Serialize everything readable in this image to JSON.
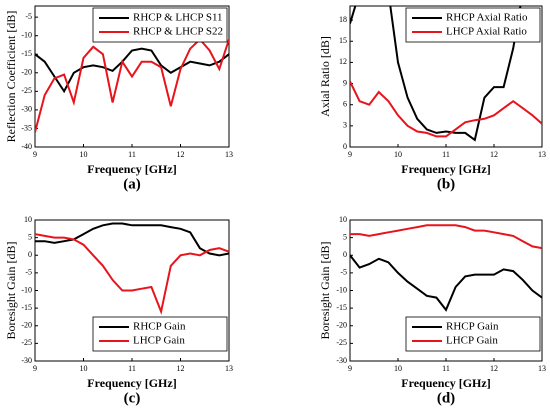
{
  "chart_data": [
    {
      "type": "line",
      "label": "(a)",
      "x_label": "Frequency [GHz]",
      "y_label": "Reflection Coefficient [dB]",
      "x": [
        9,
        9.2,
        9.4,
        9.6,
        9.8,
        10,
        10.2,
        10.4,
        10.6,
        10.8,
        11,
        11.2,
        11.4,
        11.6,
        11.8,
        12,
        12.2,
        12.4,
        12.6,
        12.8,
        13
      ],
      "xlim": [
        9,
        13
      ],
      "xticks": [
        9,
        10,
        11,
        12,
        13
      ],
      "ylim": [
        -40,
        -2
      ],
      "yticks": [
        -40,
        -35,
        -30,
        -25,
        -20,
        -15,
        -10,
        -5
      ],
      "legend": "upper right",
      "series": [
        {
          "name": "RHCP & LHCP S11",
          "color": "#000000",
          "values": [
            -15,
            -17,
            -21,
            -25,
            -20,
            -18.5,
            -18,
            -18.5,
            -19.5,
            -17,
            -14,
            -13.5,
            -14,
            -18,
            -20,
            -18.5,
            -17,
            -17.5,
            -18,
            -17,
            -15
          ]
        },
        {
          "name": "RHCP & LHCP S22",
          "color": "#e8141c",
          "values": [
            -36,
            -26,
            -21.5,
            -20.5,
            -28,
            -16,
            -13,
            -15,
            -28,
            -17,
            -21,
            -17,
            -17,
            -18.5,
            -29,
            -19,
            -13.5,
            -11,
            -14,
            -19,
            -11
          ]
        }
      ]
    },
    {
      "type": "line",
      "label": "(b)",
      "x_label": "Frequency [GHz]",
      "y_label": "Axial Ratio [dB]",
      "x": [
        9,
        9.2,
        9.4,
        9.6,
        9.8,
        10,
        10.2,
        10.4,
        10.6,
        10.8,
        11,
        11.2,
        11.4,
        11.6,
        11.8,
        12,
        12.2,
        12.4,
        12.6,
        12.8,
        13
      ],
      "xlim": [
        9,
        13
      ],
      "xticks": [
        9,
        10,
        11,
        12,
        13
      ],
      "ylim": [
        0,
        20
      ],
      "yticks": [
        0,
        3,
        6,
        9,
        12,
        15,
        18
      ],
      "legend": "upper right",
      "series": [
        {
          "name": "RHCP Axial Ratio",
          "color": "#000000",
          "values": [
            17.5,
            22,
            null,
            null,
            22,
            12,
            7,
            4,
            2.5,
            2,
            2.2,
            2,
            2,
            1,
            7,
            8.5,
            8.5,
            14,
            22,
            null,
            null
          ]
        },
        {
          "name": "LHCP Axial Ratio",
          "color": "#e8141c",
          "values": [
            9.3,
            6.5,
            6,
            7.8,
            6.5,
            4.5,
            3,
            2.2,
            2,
            1.5,
            1.5,
            2.5,
            3.5,
            3.8,
            4,
            4.5,
            5.5,
            6.5,
            5.5,
            4.5,
            3.3
          ]
        }
      ]
    },
    {
      "type": "line",
      "label": "(c)",
      "x_label": "Frequency [GHz]",
      "y_label": "Boresight Gain [dB]",
      "x": [
        9,
        9.2,
        9.4,
        9.6,
        9.8,
        10,
        10.2,
        10.4,
        10.6,
        10.8,
        11,
        11.2,
        11.4,
        11.6,
        11.8,
        12,
        12.2,
        12.4,
        12.6,
        12.8,
        13
      ],
      "xlim": [
        9,
        13
      ],
      "xticks": [
        9,
        10,
        11,
        12,
        13
      ],
      "ylim": [
        -30,
        10
      ],
      "yticks": [
        -30,
        -25,
        -20,
        -15,
        -10,
        -5,
        0,
        5,
        10
      ],
      "legend": "lower right",
      "series": [
        {
          "name": "RHCP Gain",
          "color": "#000000",
          "values": [
            4,
            4,
            3.5,
            4,
            4.5,
            6,
            7.5,
            8.5,
            9,
            9,
            8.5,
            8.5,
            8.5,
            8.5,
            8,
            7.5,
            6.5,
            2,
            0.5,
            0,
            0.5
          ]
        },
        {
          "name": "LHCP Gain",
          "color": "#e8141c",
          "values": [
            6,
            5.5,
            5,
            5,
            4.5,
            3,
            0,
            -3,
            -7,
            -10,
            -10,
            -9.5,
            -9,
            -16,
            -3,
            0,
            0.5,
            0,
            1.5,
            2,
            1
          ]
        }
      ]
    },
    {
      "type": "line",
      "label": "(d)",
      "x_label": "Frequency [GHz]",
      "y_label": "Boresight Gain [dB]",
      "x": [
        9,
        9.2,
        9.4,
        9.6,
        9.8,
        10,
        10.2,
        10.4,
        10.6,
        10.8,
        11,
        11.2,
        11.4,
        11.6,
        11.8,
        12,
        12.2,
        12.4,
        12.6,
        12.8,
        13
      ],
      "xlim": [
        9,
        13
      ],
      "xticks": [
        9,
        10,
        11,
        12,
        13
      ],
      "ylim": [
        -30,
        10
      ],
      "yticks": [
        -30,
        -25,
        -20,
        -15,
        -10,
        -5,
        0,
        5,
        10
      ],
      "legend": "lower right",
      "series": [
        {
          "name": "RHCP Gain",
          "color": "#000000",
          "values": [
            0,
            -3.5,
            -2.5,
            -1,
            -2,
            -5,
            -7.5,
            -9.5,
            -11.5,
            -12,
            -15.5,
            -9,
            -6,
            -5.5,
            -5.5,
            -5.5,
            -4,
            -4.5,
            -7,
            -10,
            -12
          ]
        },
        {
          "name": "LHCP Gain",
          "color": "#e8141c",
          "values": [
            6,
            6,
            5.5,
            6,
            6.5,
            7,
            7.5,
            8,
            8.5,
            8.5,
            8.5,
            8.5,
            8,
            7,
            7,
            6.5,
            6,
            5.5,
            4,
            2.5,
            2
          ]
        }
      ]
    }
  ]
}
